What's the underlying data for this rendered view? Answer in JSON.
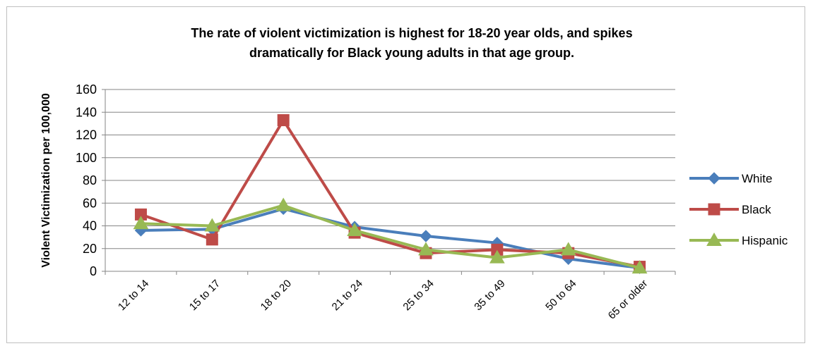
{
  "chart_data": {
    "type": "line",
    "title_lines": [
      "The rate of violent victimization is highest for 18-20 year olds, and spikes",
      "dramatically for Black young adults in that age group."
    ],
    "ylabel": "Violent Victimization per 100,000",
    "xlabel": "",
    "ylim": [
      0,
      160
    ],
    "yticks": [
      0,
      20,
      40,
      60,
      80,
      100,
      120,
      140,
      160
    ],
    "grid": true,
    "legend_position": "right",
    "categories": [
      "12 to 14",
      "15 to 17",
      "18 to 20",
      "21 to 24",
      "25 to 34",
      "35 to 49",
      "50 to 64",
      "65 or older"
    ],
    "series": [
      {
        "name": "White",
        "color": "#4a7ebb",
        "marker": "diamond",
        "values": [
          36,
          37,
          55,
          39,
          31,
          25,
          11,
          3
        ]
      },
      {
        "name": "Black",
        "color": "#be4b48",
        "marker": "square",
        "values": [
          50,
          28,
          133,
          34,
          16,
          19,
          16,
          4
        ]
      },
      {
        "name": "Hispanic",
        "color": "#98b954",
        "marker": "triangle",
        "values": [
          42,
          40,
          58,
          36,
          19,
          12,
          19,
          3
        ]
      }
    ]
  }
}
